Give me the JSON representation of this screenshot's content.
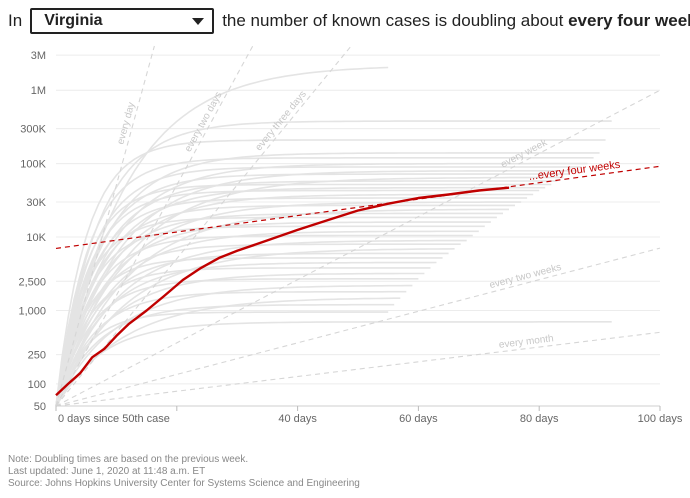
{
  "header": {
    "prefix": "In",
    "selected_state": "Virginia",
    "sentence": "the number of known cases is doubling about",
    "emphasis": "every four weeks",
    "suffix": "."
  },
  "notes": {
    "note": "Note: Doubling times are based on the previous week.",
    "updated": "Last updated: June 1, 2020 at 11:48 a.m. ET",
    "source": "Source: Johns Hopkins University Center for Systems Science and Engineering"
  },
  "colors": {
    "highlight": "#c00000",
    "background_lines": "#e4e4e4",
    "reference_lines": "#d6d6d6",
    "grid": "#ececec"
  },
  "chart_data": {
    "type": "line",
    "scale": "log",
    "xlim": [
      0,
      100
    ],
    "ylim": [
      50,
      4000000
    ],
    "x_ticks": [
      0,
      20,
      40,
      60,
      80,
      100
    ],
    "x_tick_labels": [
      "0 days since 50th case",
      "",
      "40 days",
      "60 days",
      "80 days",
      "100 days"
    ],
    "y_ticks": [
      50,
      100,
      250,
      1000,
      2500,
      10000,
      30000,
      100000,
      300000,
      1000000,
      3000000
    ],
    "y_tick_labels": [
      "50",
      "100",
      "250",
      "1,000",
      "2,500",
      "10K",
      "30K",
      "100K",
      "300K",
      "1M",
      "3M"
    ],
    "grid": true,
    "reference_lines": [
      {
        "label": "every day",
        "doubling_days": 1
      },
      {
        "label": "every two days",
        "doubling_days": 2
      },
      {
        "label": "every three days",
        "doubling_days": 3
      },
      {
        "label": "every week",
        "doubling_days": 7
      },
      {
        "label": "every two weeks",
        "doubling_days": 14
      },
      {
        "label": "every month",
        "doubling_days": 30
      }
    ],
    "highlight_trend": {
      "label": "...every four weeks",
      "x": [
        0,
        100
      ],
      "y": [
        7000,
        92000
      ]
    },
    "series": [
      {
        "x": [
          0,
          2,
          4,
          6,
          8,
          10,
          12,
          15,
          18,
          21,
          24,
          27,
          30,
          35,
          40,
          45,
          50,
          55,
          60,
          65,
          70,
          75
        ],
        "y": [
          70,
          100,
          140,
          230,
          300,
          450,
          650,
          1000,
          1600,
          2600,
          3800,
          5200,
          6500,
          9000,
          12500,
          17000,
          23000,
          28500,
          34000,
          38000,
          43000,
          47000
        ]
      }
    ]
  }
}
